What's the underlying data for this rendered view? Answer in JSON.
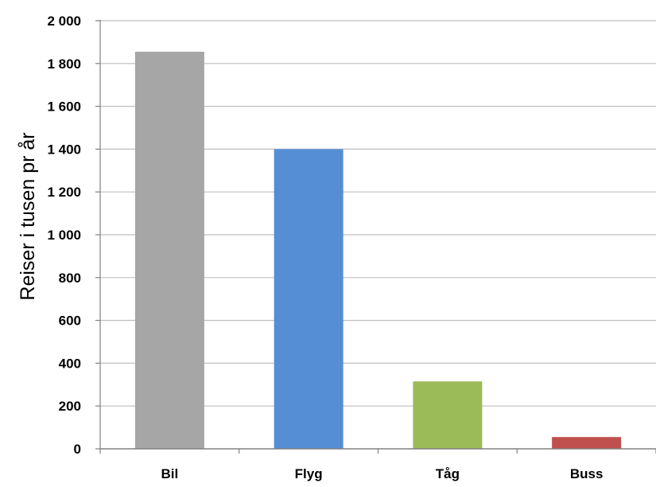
{
  "chart_data": {
    "type": "bar",
    "title": "",
    "xlabel": "",
    "ylabel": "Reiser i tusen pr år",
    "categories": [
      "Bil",
      "Flyg",
      "Tåg",
      "Buss"
    ],
    "values": [
      1855,
      1400,
      315,
      55
    ],
    "colors": [
      "#A6A6A6",
      "#558ED5",
      "#9BBB59",
      "#C0504D"
    ],
    "ylim": [
      0,
      2000
    ],
    "yticks": [
      0,
      200,
      400,
      600,
      800,
      1000,
      1200,
      1400,
      1600,
      1800,
      2000
    ],
    "ytick_labels": [
      "0",
      "200",
      "400",
      "600",
      "800",
      "1 000",
      "1 200",
      "1 400",
      "1 600",
      "1 800",
      "2 000"
    ],
    "grid": true,
    "legend": "none"
  }
}
